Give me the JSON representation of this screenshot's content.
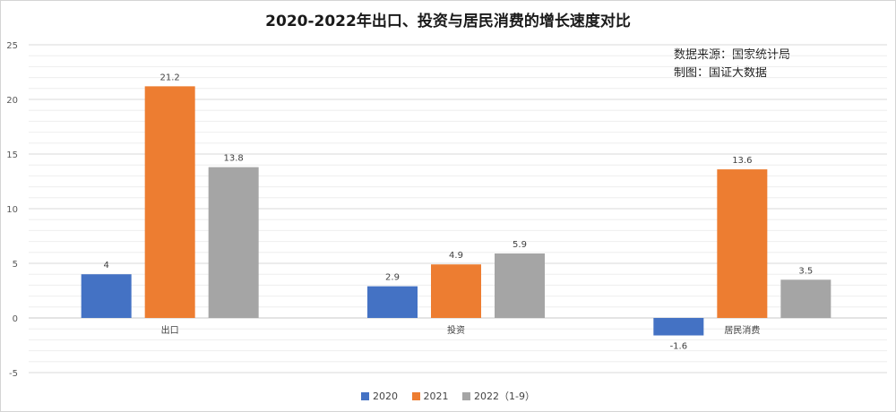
{
  "chart_data": {
    "type": "bar",
    "title": "2020-2022年出口、投资与居民消费的增长速度对比",
    "source_lines": [
      "数据来源：国家统计局",
      "制图：国证大数据"
    ],
    "categories": [
      "出口",
      "投资",
      "居民消费"
    ],
    "series": [
      {
        "name": "2020",
        "color": "#4472c4",
        "values": [
          4,
          2.9,
          -1.6
        ]
      },
      {
        "name": "2021",
        "color": "#ed7d31",
        "values": [
          21.2,
          4.9,
          13.6
        ]
      },
      {
        "name": "2022（1-9）",
        "color": "#a5a5a5",
        "values": [
          13.8,
          5.9,
          3.5
        ]
      }
    ],
    "ylim": [
      -5,
      25
    ],
    "yticks": [
      -5,
      0,
      5,
      10,
      15,
      20,
      25
    ],
    "grid": true,
    "legend_position": "bottom"
  }
}
